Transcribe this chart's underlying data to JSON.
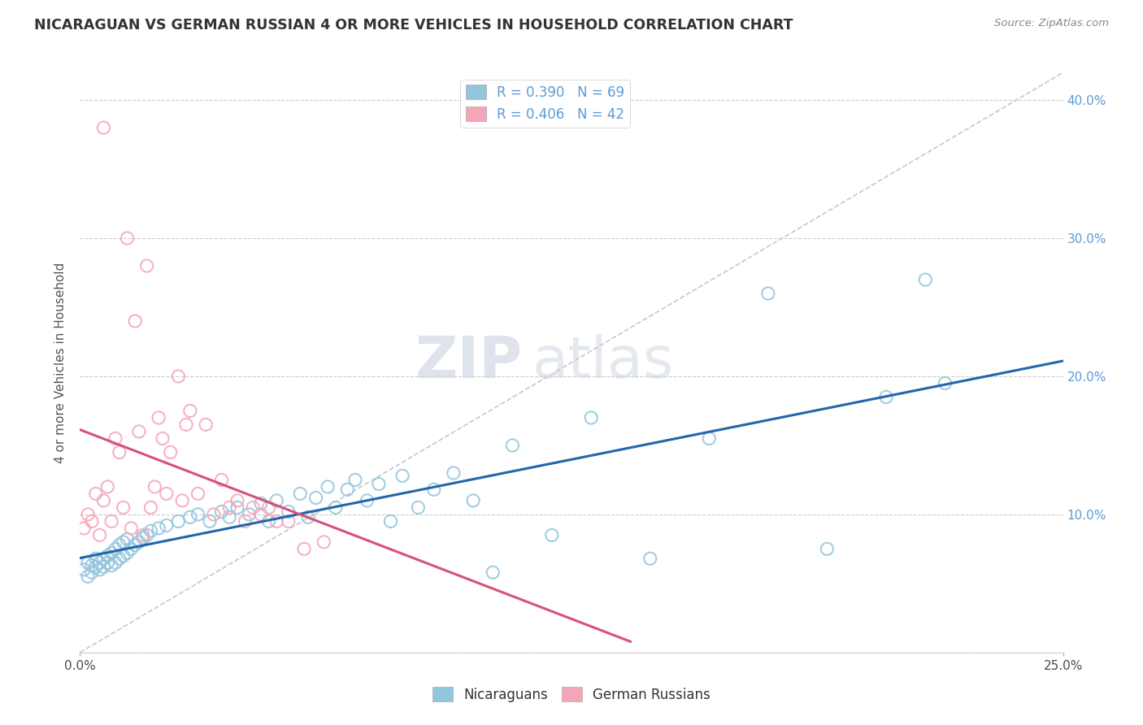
{
  "title": "NICARAGUAN VS GERMAN RUSSIAN 4 OR MORE VEHICLES IN HOUSEHOLD CORRELATION CHART",
  "source": "Source: ZipAtlas.com",
  "ylabel": "4 or more Vehicles in Household",
  "xlabel_nicaraguan": "Nicaraguans",
  "xlabel_german_russian": "German Russians",
  "xmin": 0.0,
  "xmax": 0.25,
  "ymin": 0.0,
  "ymax": 0.42,
  "R_nicaraguan": 0.39,
  "N_nicaraguan": 69,
  "R_german_russian": 0.406,
  "N_german_russian": 42,
  "color_nicaraguan": "#92c5de",
  "color_german_russian": "#f4a6b8",
  "color_trend_nicaraguan": "#2166ac",
  "color_trend_german_russian": "#d6527a",
  "color_diagonal": "#c8c8c8",
  "background_color": "#ffffff",
  "grid_color": "#cccccc",
  "watermark_zip": "ZIP",
  "watermark_atlas": "atlas",
  "nicaraguan_x": [
    0.001,
    0.002,
    0.002,
    0.003,
    0.003,
    0.004,
    0.004,
    0.005,
    0.005,
    0.006,
    0.006,
    0.007,
    0.007,
    0.008,
    0.008,
    0.009,
    0.009,
    0.01,
    0.01,
    0.011,
    0.011,
    0.012,
    0.012,
    0.013,
    0.014,
    0.015,
    0.016,
    0.017,
    0.018,
    0.02,
    0.022,
    0.025,
    0.028,
    0.03,
    0.033,
    0.036,
    0.038,
    0.04,
    0.043,
    0.046,
    0.048,
    0.05,
    0.053,
    0.056,
    0.058,
    0.06,
    0.063,
    0.065,
    0.068,
    0.07,
    0.073,
    0.076,
    0.079,
    0.082,
    0.086,
    0.09,
    0.095,
    0.1,
    0.105,
    0.11,
    0.12,
    0.13,
    0.145,
    0.16,
    0.175,
    0.19,
    0.205,
    0.215,
    0.22
  ],
  "nicaraguan_y": [
    0.06,
    0.055,
    0.065,
    0.058,
    0.063,
    0.062,
    0.068,
    0.06,
    0.065,
    0.062,
    0.068,
    0.065,
    0.07,
    0.063,
    0.072,
    0.065,
    0.075,
    0.068,
    0.078,
    0.07,
    0.08,
    0.072,
    0.082,
    0.075,
    0.078,
    0.08,
    0.083,
    0.085,
    0.088,
    0.09,
    0.092,
    0.095,
    0.098,
    0.1,
    0.095,
    0.102,
    0.098,
    0.105,
    0.1,
    0.108,
    0.095,
    0.11,
    0.102,
    0.115,
    0.098,
    0.112,
    0.12,
    0.105,
    0.118,
    0.125,
    0.11,
    0.122,
    0.095,
    0.128,
    0.105,
    0.118,
    0.13,
    0.11,
    0.058,
    0.15,
    0.085,
    0.17,
    0.068,
    0.155,
    0.26,
    0.075,
    0.185,
    0.27,
    0.195
  ],
  "german_russian_x": [
    0.001,
    0.002,
    0.003,
    0.004,
    0.005,
    0.006,
    0.006,
    0.007,
    0.008,
    0.009,
    0.01,
    0.011,
    0.012,
    0.013,
    0.014,
    0.015,
    0.016,
    0.017,
    0.018,
    0.019,
    0.02,
    0.021,
    0.022,
    0.023,
    0.025,
    0.026,
    0.027,
    0.028,
    0.03,
    0.032,
    0.034,
    0.036,
    0.038,
    0.04,
    0.042,
    0.044,
    0.046,
    0.048,
    0.05,
    0.053,
    0.057,
    0.062
  ],
  "german_russian_y": [
    0.09,
    0.1,
    0.095,
    0.115,
    0.085,
    0.11,
    0.38,
    0.12,
    0.095,
    0.155,
    0.145,
    0.105,
    0.3,
    0.09,
    0.24,
    0.16,
    0.085,
    0.28,
    0.105,
    0.12,
    0.17,
    0.155,
    0.115,
    0.145,
    0.2,
    0.11,
    0.165,
    0.175,
    0.115,
    0.165,
    0.1,
    0.125,
    0.105,
    0.11,
    0.095,
    0.105,
    0.1,
    0.105,
    0.095,
    0.095,
    0.075,
    0.08
  ]
}
